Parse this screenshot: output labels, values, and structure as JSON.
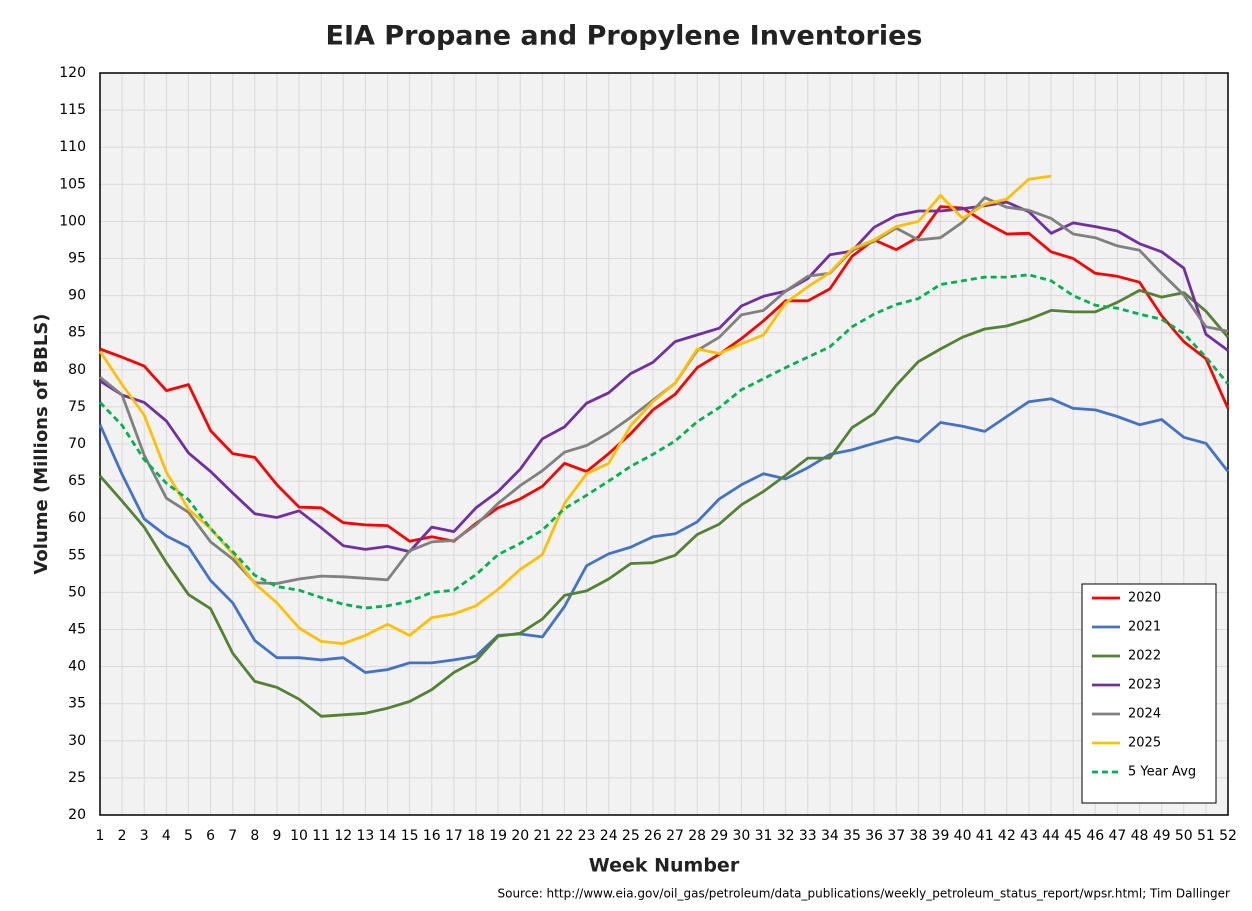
{
  "chart_data": {
    "type": "line",
    "title": "EIA Propane and Propylene Inventories",
    "x_label": "Week Number",
    "y_label": "Volume (Millions of BBLS)",
    "source": "Source: http://www.eia.gov/oil_gas/petroleum/data_publications/weekly_petroleum_status_report/wpsr.html; Tim Dallinger",
    "x": [
      1,
      2,
      3,
      4,
      5,
      6,
      7,
      8,
      9,
      10,
      11,
      12,
      13,
      14,
      15,
      16,
      17,
      18,
      19,
      20,
      21,
      22,
      23,
      24,
      25,
      26,
      27,
      28,
      29,
      30,
      31,
      32,
      33,
      34,
      35,
      36,
      37,
      38,
      39,
      40,
      41,
      42,
      43,
      44,
      45,
      46,
      47,
      48,
      49,
      50,
      51,
      52
    ],
    "xlim": [
      1,
      52
    ],
    "xticks": [
      1,
      2,
      3,
      4,
      5,
      6,
      7,
      8,
      9,
      10,
      11,
      12,
      13,
      14,
      15,
      16,
      17,
      18,
      19,
      20,
      21,
      22,
      23,
      24,
      25,
      26,
      27,
      28,
      29,
      30,
      31,
      32,
      33,
      34,
      35,
      36,
      37,
      38,
      39,
      40,
      41,
      42,
      43,
      44,
      45,
      46,
      47,
      48,
      49,
      50,
      51,
      52
    ],
    "ylim": [
      20,
      120
    ],
    "yticks": [
      20,
      25,
      30,
      35,
      40,
      45,
      50,
      55,
      60,
      65,
      70,
      75,
      80,
      85,
      90,
      95,
      100,
      105,
      110,
      115,
      120
    ],
    "grid": true,
    "legend": "lower right",
    "series": [
      {
        "name": "2020",
        "color": "#ff0000",
        "values": [
          82.8,
          81.7,
          80.5,
          77.2,
          78.0,
          71.8,
          68.7,
          68.2,
          64.5,
          61.5,
          61.4,
          59.4,
          59.1,
          59.0,
          56.9,
          57.5,
          56.9,
          59.3,
          61.4,
          62.6,
          64.3,
          67.4,
          66.3,
          68.7,
          71.4,
          74.6,
          76.7,
          80.3,
          82.1,
          84.2,
          86.6,
          89.3,
          89.3,
          90.9,
          95.3,
          97.5,
          96.2,
          97.9,
          102.0,
          101.8,
          99.9,
          98.3,
          98.4,
          95.9,
          95.0,
          93.0,
          92.6,
          91.8,
          87.3,
          83.8,
          81.5,
          74.8
        ]
      },
      {
        "name": "2021",
        "color": "#4472c4",
        "values": [
          72.6,
          65.9,
          59.9,
          57.6,
          56.1,
          51.6,
          48.6,
          43.5,
          41.2,
          41.2,
          40.9,
          41.2,
          39.2,
          39.6,
          40.5,
          40.5,
          40.9,
          41.4,
          44.2,
          44.4,
          44.0,
          48.1,
          53.6,
          55.2,
          56.1,
          57.5,
          57.9,
          59.5,
          62.6,
          64.5,
          66.0,
          65.3,
          66.8,
          68.6,
          69.2,
          70.1,
          70.9,
          70.3,
          72.9,
          72.4,
          71.7,
          73.7,
          75.7,
          76.1,
          74.8,
          74.6,
          73.7,
          72.6,
          73.3,
          70.9,
          70.1,
          66.3
        ]
      },
      {
        "name": "2022",
        "color": "#548235",
        "values": [
          65.7,
          62.3,
          58.8,
          54.0,
          49.7,
          47.8,
          41.8,
          38.0,
          37.2,
          35.6,
          33.3,
          33.5,
          33.7,
          34.4,
          35.3,
          36.9,
          39.2,
          40.8,
          44.1,
          44.5,
          46.4,
          49.6,
          50.2,
          51.8,
          53.9,
          54.0,
          55.0,
          57.8,
          59.2,
          61.8,
          63.6,
          65.8,
          68.1,
          68.1,
          72.2,
          74.1,
          77.9,
          81.1,
          82.8,
          84.4,
          85.5,
          85.9,
          86.8,
          88.0,
          87.8,
          87.8,
          89.1,
          90.7,
          89.8,
          90.4,
          87.9,
          84.4
        ]
      },
      {
        "name": "2023",
        "color": "#7030a0",
        "values": [
          78.5,
          76.6,
          75.6,
          73.1,
          68.8,
          66.3,
          63.4,
          60.6,
          60.1,
          61.0,
          58.7,
          56.3,
          55.8,
          56.2,
          55.5,
          58.8,
          58.2,
          61.4,
          63.6,
          66.6,
          70.7,
          72.3,
          75.5,
          76.9,
          79.5,
          81.0,
          83.8,
          84.7,
          85.6,
          88.6,
          89.9,
          90.6,
          92.3,
          95.5,
          96.0,
          99.2,
          100.8,
          101.4,
          101.4,
          101.7,
          102.1,
          102.6,
          101.3,
          98.4,
          99.8,
          99.3,
          98.7,
          97.0,
          95.9,
          93.7,
          84.8,
          82.6
        ]
      },
      {
        "name": "2024",
        "color": "#808080",
        "values": [
          79.0,
          76.6,
          68.5,
          62.7,
          60.8,
          56.8,
          54.5,
          51.3,
          51.2,
          51.8,
          52.2,
          52.1,
          51.9,
          51.7,
          55.6,
          56.8,
          57.0,
          59.1,
          62.0,
          64.4,
          66.4,
          68.9,
          69.8,
          71.5,
          73.6,
          75.9,
          78.2,
          82.6,
          84.4,
          87.4,
          88.0,
          90.6,
          92.6,
          93.0,
          96.1,
          97.3,
          99.1,
          97.5,
          97.8,
          99.9,
          103.2,
          101.9,
          101.5,
          100.4,
          98.3,
          97.8,
          96.7,
          96.1,
          93.0,
          90.1,
          85.8,
          85.2
        ]
      },
      {
        "name": "2025",
        "color": "#ffc000",
        "values": [
          82.5,
          78.0,
          73.9,
          66.2,
          61.2,
          58.6,
          55.2,
          51.2,
          48.6,
          45.2,
          43.4,
          43.1,
          44.2,
          45.7,
          44.2,
          46.6,
          47.1,
          48.2,
          50.4,
          53.1,
          55.1,
          62.0,
          66.0,
          67.4,
          72.5,
          75.7,
          78.2,
          82.8,
          82.2,
          83.5,
          84.7,
          89.0,
          91.2,
          93.1,
          96.3,
          97.5,
          99.3,
          100.0,
          103.5,
          100.4,
          102.3,
          103.0,
          105.7,
          106.1,
          null,
          null,
          null,
          null,
          null,
          null,
          null,
          null
        ]
      },
      {
        "name": "5 Year Avg",
        "color": "#00b050",
        "dashed": true,
        "values": [
          75.6,
          72.5,
          67.9,
          64.7,
          62.5,
          58.6,
          55.5,
          52.3,
          50.8,
          50.3,
          49.3,
          48.4,
          47.9,
          48.2,
          48.8,
          50.0,
          50.3,
          52.4,
          55.1,
          56.6,
          58.4,
          61.3,
          63.1,
          65.0,
          67.0,
          68.6,
          70.4,
          73.0,
          74.9,
          77.3,
          78.8,
          80.3,
          81.7,
          83.1,
          85.8,
          87.5,
          88.8,
          89.6,
          91.5,
          92.0,
          92.5,
          92.5,
          92.8,
          92.0,
          90.0,
          88.7,
          88.3,
          87.5,
          86.8,
          84.9,
          81.7,
          78.1
        ]
      }
    ]
  }
}
